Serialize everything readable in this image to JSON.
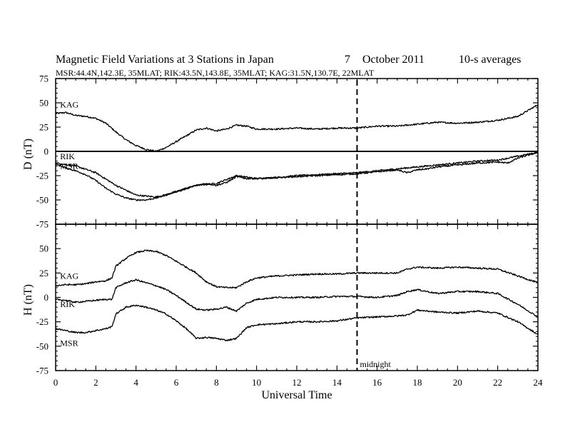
{
  "figure": {
    "title": {
      "main": "Magnetic Field Variations at 3 Stations in Japan",
      "day": "7",
      "month_year": "October 2011",
      "cadence": "10-s averages"
    },
    "subtitle": "MSR:44.4N,142.3E, 35MLAT;  RIK:43.5N,143.8E, 35MLAT;  KAG:31.5N,130.7E, 22MLAT"
  },
  "chart_data": [
    {
      "type": "line",
      "ylabel": "D (nT)",
      "xlabel": "",
      "xlim": [
        0,
        24
      ],
      "ylim": [
        -75,
        75
      ],
      "yticks": [
        "75",
        "50",
        "25",
        "0",
        "-25",
        "-50",
        "-75"
      ],
      "zero_line": true,
      "series": [
        {
          "name": "KAG",
          "x": [
            0,
            0.5,
            1,
            1.5,
            2,
            2.5,
            3,
            3.5,
            4,
            4.5,
            5,
            5.5,
            6,
            6.5,
            7,
            7.5,
            8,
            8.5,
            9,
            9.5,
            10,
            11,
            12,
            13,
            14,
            15,
            16,
            17,
            18,
            19,
            20,
            21,
            22,
            23,
            24
          ],
          "y": [
            39,
            40,
            37,
            36,
            34,
            29,
            20,
            12,
            6,
            2,
            0,
            4,
            10,
            16,
            22,
            24,
            21,
            23,
            27,
            26,
            23,
            23,
            24,
            23,
            24,
            24,
            26,
            26,
            28,
            30,
            29,
            30,
            32,
            36,
            48
          ]
        },
        {
          "name": "RIK",
          "x": [
            0,
            1,
            2,
            3,
            4,
            5,
            6,
            7,
            8,
            9,
            10,
            11,
            12,
            13,
            14,
            15,
            16,
            17,
            18,
            19,
            20,
            21,
            22,
            23,
            24
          ],
          "y": [
            -12,
            -15,
            -22,
            -35,
            -45,
            -47,
            -42,
            -35,
            -33,
            -25,
            -28,
            -27,
            -25,
            -24,
            -23,
            -22,
            -20,
            -18,
            -16,
            -14,
            -12,
            -10,
            -9,
            -5,
            -1
          ]
        },
        {
          "name": "MSR",
          "x": [
            0,
            0.5,
            1,
            1.5,
            2,
            2.5,
            3,
            3.5,
            4,
            4.5,
            5,
            5.5,
            6,
            6.5,
            7,
            7.5,
            8,
            8.5,
            9,
            9.5,
            10,
            11,
            12,
            13,
            14,
            15,
            16,
            17,
            17.5,
            18,
            18.5,
            19,
            20,
            21,
            22,
            22.5,
            23,
            24
          ],
          "y": [
            -13,
            -17,
            -20,
            -24,
            -30,
            -38,
            -44,
            -48,
            -50,
            -50,
            -48,
            -45,
            -41,
            -38,
            -35,
            -33,
            -35,
            -32,
            -26,
            -28,
            -28,
            -27,
            -26,
            -25,
            -24,
            -23,
            -21,
            -19,
            -22,
            -19,
            -18,
            -16,
            -14,
            -12,
            -11,
            -12,
            -7,
            -1
          ]
        }
      ]
    },
    {
      "type": "line",
      "ylabel": "H (nT)",
      "xlabel": "Universal Time",
      "xlim": [
        0,
        24
      ],
      "ylim": [
        -75,
        75
      ],
      "yticks": [
        "50",
        "25",
        "0",
        "-25",
        "-50",
        "-75"
      ],
      "xticks": [
        "0",
        "2",
        "4",
        "6",
        "8",
        "10",
        "12",
        "14",
        "16",
        "18",
        "20",
        "22",
        "24"
      ],
      "series": [
        {
          "name": "KAG",
          "x": [
            0,
            0.5,
            1,
            1.5,
            2,
            2.5,
            2.8,
            3,
            3.5,
            4,
            4.5,
            5,
            5.5,
            6,
            6.5,
            7,
            7.5,
            8,
            8.5,
            9,
            9.5,
            10,
            11,
            12,
            13,
            14,
            15,
            16,
            17,
            17.5,
            18,
            19,
            20,
            21,
            22,
            23,
            24
          ],
          "y": [
            12,
            13,
            13,
            14,
            16,
            17,
            20,
            32,
            40,
            46,
            48,
            47,
            43,
            37,
            31,
            25,
            16,
            11,
            10,
            10,
            16,
            20,
            22,
            23,
            24,
            24,
            25,
            25,
            25,
            29,
            31,
            30,
            31,
            30,
            29,
            22,
            15
          ]
        },
        {
          "name": "RIK",
          "x": [
            0,
            0.5,
            1,
            1.5,
            2,
            2.5,
            2.8,
            3,
            3.5,
            4,
            4.5,
            5,
            5.5,
            6,
            6.5,
            7,
            7.5,
            8,
            8.5,
            9,
            9.5,
            10,
            11,
            12,
            13,
            14,
            15,
            16,
            17,
            17.5,
            18,
            19,
            20,
            21,
            22,
            23,
            24
          ],
          "y": [
            -2,
            -3,
            -5,
            -4,
            -3,
            -2,
            -2,
            10,
            15,
            18,
            15,
            12,
            8,
            2,
            -5,
            -12,
            -13,
            -12,
            -10,
            -14,
            -6,
            -2,
            0,
            0,
            0,
            1,
            1,
            0,
            2,
            6,
            8,
            4,
            6,
            6,
            4,
            -7,
            -20
          ]
        },
        {
          "name": "MSR",
          "x": [
            0,
            0.5,
            1,
            1.5,
            2,
            2.5,
            2.8,
            3,
            3.5,
            4,
            4.5,
            5,
            5.5,
            6,
            6.5,
            7,
            7.5,
            8,
            8.5,
            9,
            9.5,
            10,
            11,
            12,
            13,
            14,
            15,
            16,
            17,
            17.5,
            18,
            19,
            20,
            21,
            22,
            23,
            24
          ],
          "y": [
            -32,
            -34,
            -36,
            -36,
            -34,
            -32,
            -30,
            -17,
            -10,
            -8,
            -10,
            -13,
            -17,
            -24,
            -32,
            -42,
            -41,
            -42,
            -44,
            -42,
            -31,
            -28,
            -27,
            -25,
            -25,
            -24,
            -21,
            -20,
            -19,
            -18,
            -13,
            -15,
            -16,
            -14,
            -16,
            -25,
            -38
          ]
        }
      ]
    }
  ],
  "annotation": {
    "midnight_label": "midnight",
    "midnight_ut": 15
  }
}
